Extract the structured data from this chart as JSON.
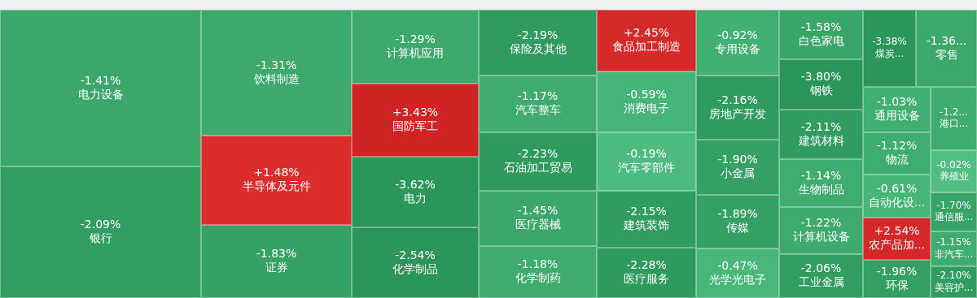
{
  "chart_data": {
    "type": "other",
    "categories": [
      "电力设备",
      "银行",
      "饮料制造",
      "半导体及元件",
      "证券",
      "计算机应用",
      "国防军工",
      "电力",
      "化学制品",
      "保险及其他",
      "汽车整车",
      "石油加工贸易",
      "医疗器械",
      "化学制药",
      "食品加工制造",
      "消费电子",
      "汽车零部件",
      "建筑装饰",
      "医疗服务",
      "专用设备",
      "房地产开发",
      "小金属",
      "传媒",
      "光学光电子",
      "白色家电",
      "钢铁",
      "建筑材料",
      "生物制品",
      "计算机设备",
      "工业金属",
      "煤炭...",
      "零售",
      "通用设备",
      "物流",
      "自动化设...",
      "农产品加...",
      "环保",
      "港口...",
      "养殖业",
      "通信服...",
      "非汽车...",
      "美容护..."
    ],
    "values": [
      -1.41,
      -2.09,
      -1.31,
      1.48,
      -1.83,
      -1.29,
      3.43,
      -3.62,
      -2.54,
      -2.19,
      -1.17,
      -2.23,
      -1.45,
      -1.18,
      2.45,
      -0.59,
      -0.19,
      -2.15,
      -2.28,
      -0.92,
      -2.16,
      -1.9,
      -1.89,
      -0.47,
      -1.58,
      -3.8,
      -2.11,
      -1.14,
      -1.22,
      -2.06,
      -3.38,
      -1.36,
      -1.03,
      -1.12,
      -0.61,
      2.54,
      -1.96,
      -1.2,
      -0.02,
      -1.7,
      -1.15,
      -2.1
    ],
    "value_labels": [
      "-1.41%",
      "-2.09%",
      "-1.31%",
      "+1.48%",
      "-1.83%",
      "-1.29%",
      "+3.43%",
      "-3.62%",
      "-2.54%",
      "-2.19%",
      "-1.17%",
      "-2.23%",
      "-1.45%",
      "-1.18%",
      "+2.45%",
      "-0.59%",
      "-0.19%",
      "-2.15%",
      "-2.28%",
      "-0.92%",
      "-2.16%",
      "-1.90%",
      "-1.89%",
      "-0.47%",
      "-1.58%",
      "-3.80%",
      "-2.11%",
      "-1.14%",
      "-1.22%",
      "-2.06%",
      "-3.38%",
      "-1.36...",
      "-1.03%",
      "-1.12%",
      "-0.61%",
      "+2.54%",
      "-1.96%",
      "-1.2...",
      "-0.02%",
      "-1.70%",
      "-1.15%",
      "-2.10%"
    ]
  }
}
